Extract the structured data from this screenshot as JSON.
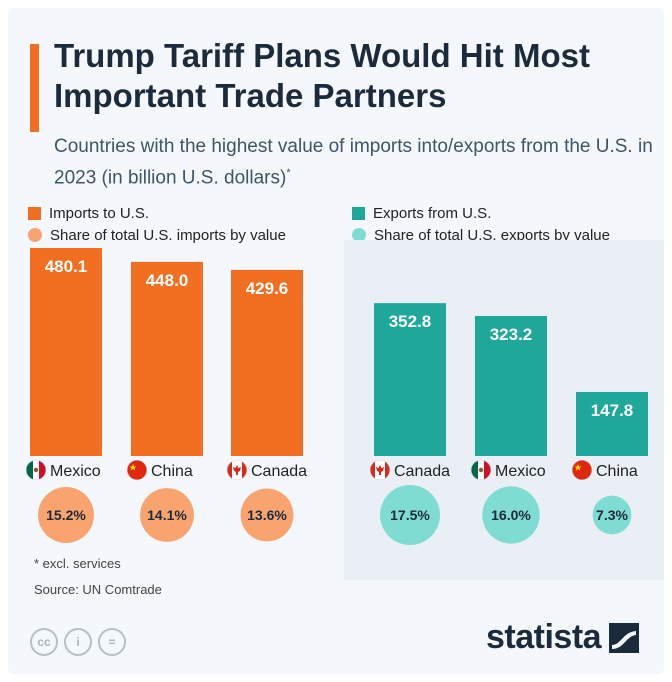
{
  "title": "Trump Tariff Plans Would Hit Most Important Trade Partners",
  "subtitle": "Countries with the highest value of imports into/exports from the U.S. in 2023 (in billion U.S. dollars)",
  "subtitle_mark": "*",
  "colors": {
    "imports": "#f26f21",
    "imports_share": "#f9a46f",
    "exports": "#1fa89a",
    "exports_share": "#7fdcd3"
  },
  "chart_data": [
    {
      "type": "bar",
      "legend": [
        "Imports to U.S.",
        "Share of total U.S. imports by value"
      ],
      "categories": [
        "Mexico",
        "China",
        "Canada"
      ],
      "values": [
        480.1,
        448.0,
        429.6
      ],
      "value_labels": [
        "480.1",
        "448.0",
        "429.6"
      ],
      "share": [
        15.2,
        14.1,
        13.6
      ],
      "share_labels": [
        "15.2%",
        "14.1%",
        "13.6%"
      ],
      "ylim": [
        0,
        480.1
      ]
    },
    {
      "type": "bar",
      "legend": [
        "Exports from U.S.",
        "Share of total U.S. exports by value"
      ],
      "categories": [
        "Canada",
        "Mexico",
        "China"
      ],
      "values": [
        352.8,
        323.2,
        147.8
      ],
      "value_labels": [
        "352.8",
        "323.2",
        "147.8"
      ],
      "share": [
        17.5,
        16.0,
        7.3
      ],
      "share_labels": [
        "17.5%",
        "16.0%",
        "7.3%"
      ],
      "ylim": [
        0,
        480.1
      ]
    }
  ],
  "footnote": "* excl. services",
  "source": "Source: UN Comtrade",
  "license": [
    "cc",
    "i",
    "="
  ],
  "brand": "statista"
}
